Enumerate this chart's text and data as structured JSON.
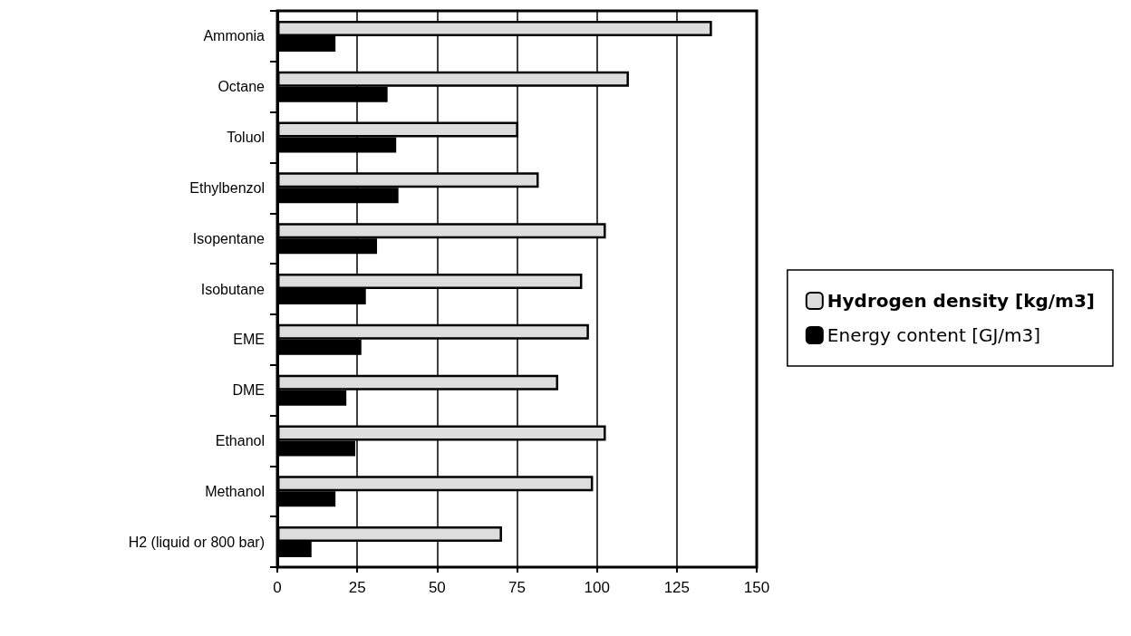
{
  "chart_data": {
    "type": "bar",
    "orientation": "horizontal",
    "categories": [
      "Ammonia",
      "Octane",
      "Toluol",
      "Ethylbenzol",
      "Isopentane",
      "Isobutane",
      "EME",
      "DME",
      "Ethanol",
      "Methanol",
      "H2 (liquid or 800 bar)"
    ],
    "series": [
      {
        "name": "Hydrogen density [kg/m3]",
        "color": "#dddddd",
        "values": [
          136,
          110,
          75.4,
          81.8,
          102.8,
          95.4,
          97.5,
          87.9,
          102.8,
          98.8,
          70.3
        ]
      },
      {
        "name": "Energy content [GJ/m3]",
        "color": "#000000",
        "values": [
          18.2,
          34.5,
          37.2,
          37.9,
          31.2,
          27.7,
          26.3,
          21.6,
          24.4,
          18.2,
          10.7
        ]
      }
    ],
    "xlim": [
      0,
      150
    ],
    "xticks": [
      0,
      25,
      50,
      75,
      100,
      125,
      150
    ],
    "grid": "x",
    "legend": "right"
  }
}
